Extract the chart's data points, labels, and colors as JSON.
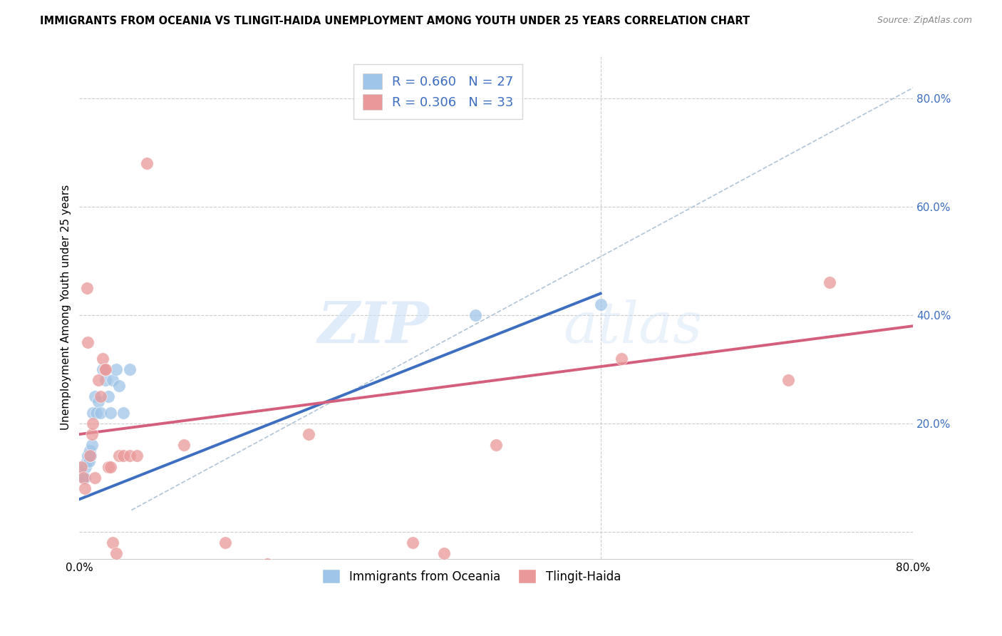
{
  "title": "IMMIGRANTS FROM OCEANIA VS TLINGIT-HAIDA UNEMPLOYMENT AMONG YOUTH UNDER 25 YEARS CORRELATION CHART",
  "source": "Source: ZipAtlas.com",
  "ylabel": "Unemployment Among Youth under 25 years",
  "xlim": [
    0.0,
    0.8
  ],
  "ylim": [
    -0.05,
    0.88
  ],
  "xticks": [
    0.0,
    0.1,
    0.2,
    0.3,
    0.4,
    0.5,
    0.6,
    0.7,
    0.8
  ],
  "xtick_labels": [
    "0.0%",
    "",
    "",
    "",
    "",
    "",
    "",
    "",
    "80.0%"
  ],
  "yticks_right": [
    0.0,
    0.2,
    0.4,
    0.6,
    0.8
  ],
  "ytick_labels_right": [
    "",
    "20.0%",
    "40.0%",
    "60.0%",
    "80.0%"
  ],
  "legend_1_label": "R = 0.660   N = 27",
  "legend_2_label": "R = 0.306   N = 33",
  "color_blue": "#9fc5e8",
  "color_pink": "#ea9999",
  "color_blue_line": "#3d6ebf",
  "color_pink_line": "#d45f7d",
  "color_dashed": "#b0c4d8",
  "scatter_blue_x": [
    0.002,
    0.003,
    0.004,
    0.005,
    0.006,
    0.007,
    0.008,
    0.009,
    0.01,
    0.011,
    0.012,
    0.013,
    0.015,
    0.016,
    0.018,
    0.02,
    0.022,
    0.025,
    0.028,
    0.03,
    0.032,
    0.035,
    0.038,
    0.042,
    0.048,
    0.38,
    0.5
  ],
  "scatter_blue_y": [
    0.12,
    0.1,
    0.1,
    0.1,
    0.12,
    0.13,
    0.14,
    0.13,
    0.15,
    0.14,
    0.16,
    0.22,
    0.25,
    0.22,
    0.24,
    0.22,
    0.3,
    0.28,
    0.25,
    0.22,
    0.28,
    0.3,
    0.27,
    0.22,
    0.3,
    0.4,
    0.42
  ],
  "scatter_pink_x": [
    0.002,
    0.004,
    0.005,
    0.007,
    0.008,
    0.01,
    0.012,
    0.013,
    0.015,
    0.018,
    0.02,
    0.022,
    0.024,
    0.025,
    0.028,
    0.03,
    0.032,
    0.035,
    0.038,
    0.042,
    0.048,
    0.055,
    0.065,
    0.1,
    0.14,
    0.18,
    0.22,
    0.32,
    0.35,
    0.4,
    0.52,
    0.68,
    0.72
  ],
  "scatter_pink_y": [
    0.12,
    0.1,
    0.08,
    0.45,
    0.35,
    0.14,
    0.18,
    0.2,
    0.1,
    0.28,
    0.25,
    0.32,
    0.3,
    0.3,
    0.12,
    0.12,
    -0.02,
    -0.04,
    0.14,
    0.14,
    0.14,
    0.14,
    0.68,
    0.16,
    -0.02,
    -0.06,
    0.18,
    -0.02,
    -0.04,
    0.16,
    0.32,
    0.28,
    0.46
  ],
  "blue_line_x": [
    0.0,
    0.5
  ],
  "blue_line_y": [
    0.06,
    0.44
  ],
  "pink_line_x": [
    0.0,
    0.8
  ],
  "pink_line_y": [
    0.18,
    0.38
  ],
  "dashed_line_x": [
    0.05,
    0.8
  ],
  "dashed_line_y": [
    0.04,
    0.82
  ],
  "watermark_zip": "ZIP",
  "watermark_atlas": "atlas",
  "marker_size": 160
}
